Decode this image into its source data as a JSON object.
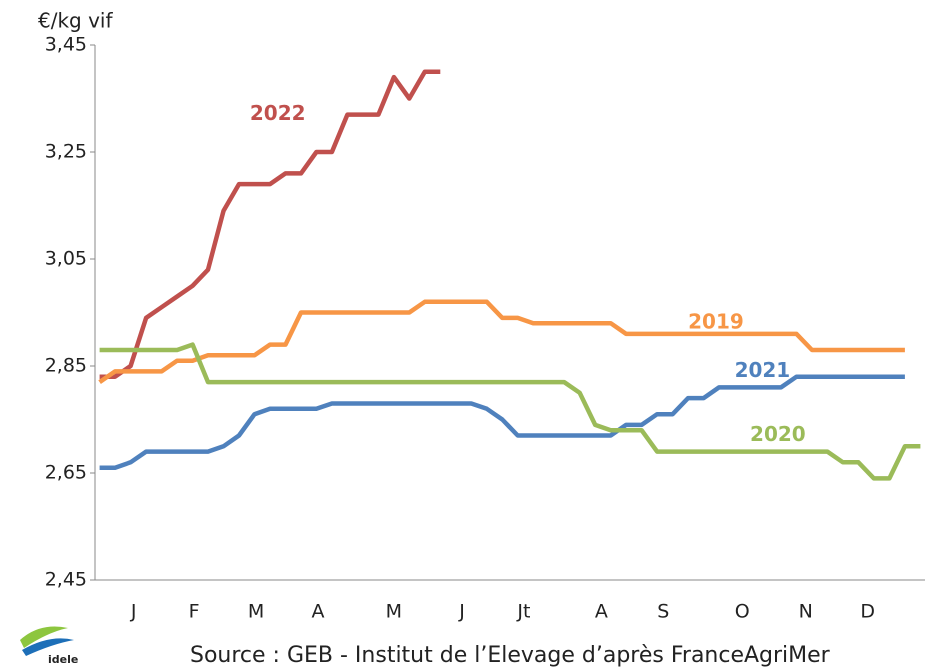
{
  "chart_data": {
    "type": "line",
    "y_label": "€/kg vif",
    "source": "Source : GEB - Institut de l’Elevage d’après FranceAgriMer",
    "logo": "idele",
    "x": [
      1,
      2,
      3,
      4,
      5,
      6,
      7,
      8,
      9,
      10,
      11,
      12,
      13,
      14,
      15,
      16,
      17,
      18,
      19,
      20,
      21,
      22,
      23,
      24,
      25,
      26,
      27,
      28,
      29,
      30,
      31,
      32,
      33,
      34,
      35,
      36,
      37,
      38,
      39,
      40,
      41,
      42,
      43,
      44,
      45,
      46,
      47,
      48,
      49,
      50,
      51,
      52,
      53,
      54
    ],
    "xlim": [
      0.7,
      54.3
    ],
    "xticks": [
      {
        "value": 3.2,
        "label": "J"
      },
      {
        "value": 7.1,
        "label": "F"
      },
      {
        "value": 11.1,
        "label": "M"
      },
      {
        "value": 15.1,
        "label": "A"
      },
      {
        "value": 20.0,
        "label": "M"
      },
      {
        "value": 24.4,
        "label": "J"
      },
      {
        "value": 28.4,
        "label": "Jt"
      },
      {
        "value": 33.4,
        "label": "A"
      },
      {
        "value": 37.4,
        "label": "S"
      },
      {
        "value": 42.5,
        "label": "O"
      },
      {
        "value": 46.6,
        "label": "N"
      },
      {
        "value": 50.6,
        "label": "D"
      }
    ],
    "ylim": [
      2.45,
      3.45
    ],
    "yticks": [
      {
        "value": 2.45,
        "label": "2,45"
      },
      {
        "value": 2.65,
        "label": "2,65"
      },
      {
        "value": 2.85,
        "label": "2,85"
      },
      {
        "value": 3.05,
        "label": "3,05"
      },
      {
        "value": 3.25,
        "label": "3,25"
      },
      {
        "value": 3.45,
        "label": "3,45"
      }
    ],
    "series": [
      {
        "name": "2022",
        "color": "#c0504d",
        "label_at": [
          12.5,
          3.32
        ],
        "values": [
          2.83,
          2.83,
          2.85,
          2.94,
          2.96,
          2.98,
          3.0,
          3.03,
          3.14,
          3.19,
          3.19,
          3.19,
          3.21,
          3.21,
          3.25,
          3.25,
          3.32,
          3.32,
          3.32,
          3.39,
          3.35,
          3.4,
          3.4,
          null,
          null,
          null,
          null,
          null,
          null,
          null,
          null,
          null,
          null,
          null,
          null,
          null,
          null,
          null,
          null,
          null,
          null,
          null,
          null,
          null,
          null,
          null,
          null,
          null,
          null,
          null,
          null,
          null,
          null,
          null
        ]
      },
      {
        "name": "2019",
        "color": "#f79646",
        "label_at": [
          40.8,
          2.93
        ],
        "values": [
          2.82,
          2.84,
          2.84,
          2.84,
          2.84,
          2.86,
          2.86,
          2.87,
          2.87,
          2.87,
          2.87,
          2.89,
          2.89,
          2.95,
          2.95,
          2.95,
          2.95,
          2.95,
          2.95,
          2.95,
          2.95,
          2.97,
          2.97,
          2.97,
          2.97,
          2.97,
          2.94,
          2.94,
          2.93,
          2.93,
          2.93,
          2.93,
          2.93,
          2.93,
          2.91,
          2.91,
          2.91,
          2.91,
          2.91,
          2.91,
          2.91,
          2.91,
          2.91,
          2.91,
          2.91,
          2.91,
          2.88,
          2.88,
          2.88,
          2.88,
          2.88,
          2.88,
          2.88,
          null
        ]
      },
      {
        "name": "2021",
        "color": "#4f81bd",
        "label_at": [
          43.8,
          2.84
        ],
        "values": [
          2.66,
          2.66,
          2.67,
          2.69,
          2.69,
          2.69,
          2.69,
          2.69,
          2.7,
          2.72,
          2.76,
          2.77,
          2.77,
          2.77,
          2.77,
          2.78,
          2.78,
          2.78,
          2.78,
          2.78,
          2.78,
          2.78,
          2.78,
          2.78,
          2.78,
          2.77,
          2.75,
          2.72,
          2.72,
          2.72,
          2.72,
          2.72,
          2.72,
          2.72,
          2.74,
          2.74,
          2.76,
          2.76,
          2.79,
          2.79,
          2.81,
          2.81,
          2.81,
          2.81,
          2.81,
          2.83,
          2.83,
          2.83,
          2.83,
          2.83,
          2.83,
          2.83,
          2.83,
          null
        ]
      },
      {
        "name": "2020",
        "color": "#9bbb59",
        "label_at": [
          44.8,
          2.72
        ],
        "values": [
          2.88,
          2.88,
          2.88,
          2.88,
          2.88,
          2.88,
          2.89,
          2.82,
          2.82,
          2.82,
          2.82,
          2.82,
          2.82,
          2.82,
          2.82,
          2.82,
          2.82,
          2.82,
          2.82,
          2.82,
          2.82,
          2.82,
          2.82,
          2.82,
          2.82,
          2.82,
          2.82,
          2.82,
          2.82,
          2.82,
          2.82,
          2.8,
          2.74,
          2.73,
          2.73,
          2.73,
          2.69,
          2.69,
          2.69,
          2.69,
          2.69,
          2.69,
          2.69,
          2.69,
          2.69,
          2.69,
          2.69,
          2.69,
          2.67,
          2.67,
          2.64,
          2.64,
          2.7,
          2.7
        ]
      }
    ]
  }
}
